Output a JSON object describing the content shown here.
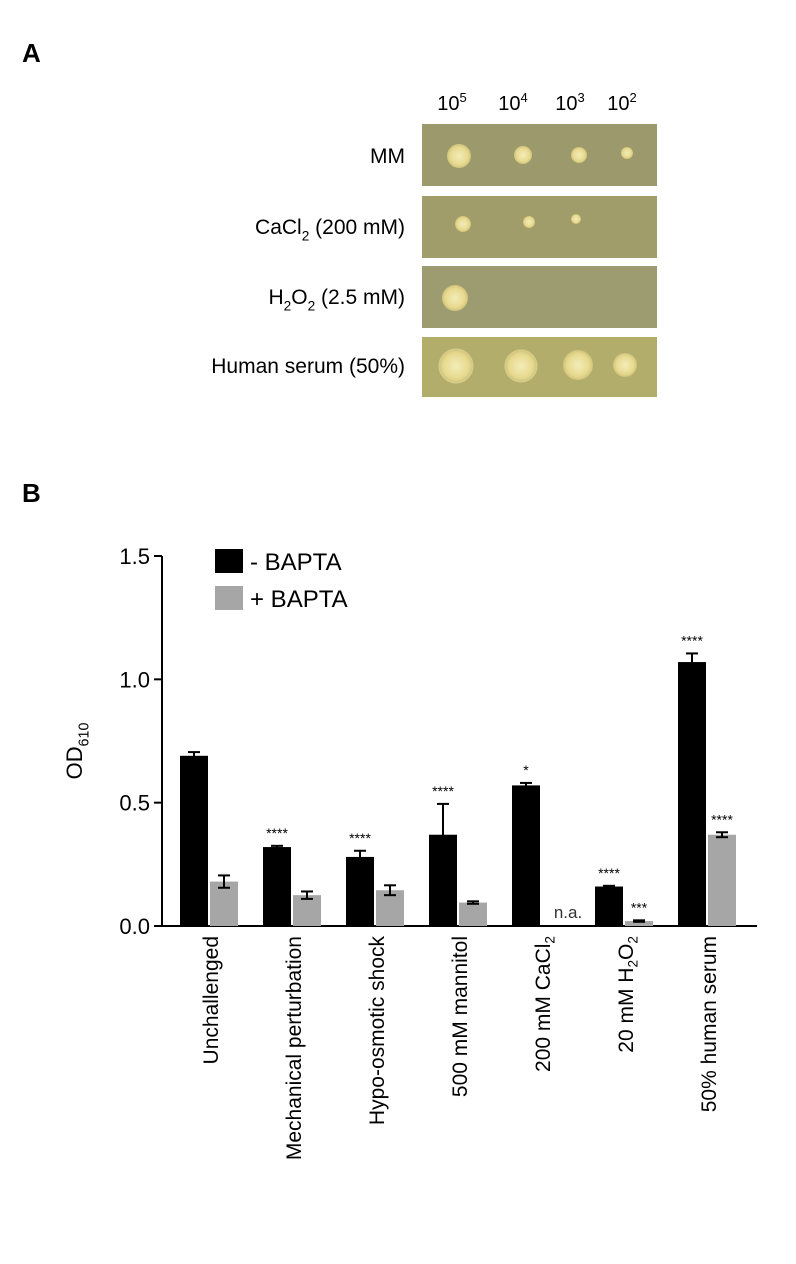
{
  "panel_a": {
    "label": "A",
    "columns": [
      [
        {
          "text": "10"
        },
        {
          "text": "5",
          "sup": true
        }
      ],
      [
        {
          "text": "10"
        },
        {
          "text": "4",
          "sup": true
        }
      ],
      [
        {
          "text": "10"
        },
        {
          "text": "3",
          "sup": true
        }
      ],
      [
        {
          "text": "10"
        },
        {
          "text": "2",
          "sup": true
        }
      ]
    ],
    "rows": [
      [
        {
          "text": "MM"
        }
      ],
      [
        {
          "text": "CaCl"
        },
        {
          "text": "2",
          "sub": true
        },
        {
          "text": " (200 mM)"
        }
      ],
      [
        {
          "text": "H"
        },
        {
          "text": "2",
          "sub": true
        },
        {
          "text": "O"
        },
        {
          "text": "2",
          "sub": true
        },
        {
          "text": " (2.5 mM)"
        }
      ],
      [
        {
          "text": "Human serum (50%)"
        }
      ]
    ]
  },
  "panel_b_label": "B",
  "chart_data": {
    "type": "bar",
    "ylabel": [
      {
        "text": "OD"
      },
      {
        "text": "610",
        "sub": true
      }
    ],
    "categories": [
      [
        {
          "text": "Unchallenged"
        }
      ],
      [
        {
          "text": "Mechanical perturbation"
        }
      ],
      [
        {
          "text": "Hypo-osmotic shock"
        }
      ],
      [
        {
          "text": "500 mM mannitol"
        }
      ],
      [
        {
          "text": "200 mM CaCl"
        },
        {
          "text": "2",
          "sub": true
        }
      ],
      [
        {
          "text": "20 mM H"
        },
        {
          "text": "2",
          "sub": true
        },
        {
          "text": "O"
        },
        {
          "text": "2",
          "sub": true
        }
      ],
      [
        {
          "text": "50% human serum"
        }
      ]
    ],
    "series": [
      {
        "name": "- BAPTA",
        "color": "#000000",
        "values": [
          0.69,
          0.32,
          0.28,
          0.37,
          0.57,
          0.16,
          1.07
        ],
        "errors": [
          0.015,
          0.005,
          0.025,
          0.125,
          0.01,
          0.003,
          0.035
        ],
        "annotations": [
          null,
          "****",
          "****",
          "****",
          "*",
          "****",
          "****"
        ]
      },
      {
        "name": "+ BAPTA",
        "color": "#a6a6a6",
        "values": [
          0.18,
          0.125,
          0.145,
          0.095,
          null,
          0.02,
          0.37
        ],
        "errors": [
          0.025,
          0.015,
          0.02,
          0.005,
          null,
          0.003,
          0.01
        ],
        "annotations": [
          null,
          null,
          null,
          null,
          "n.a.",
          "***",
          "****"
        ]
      }
    ],
    "ylim": [
      0,
      1.5
    ],
    "yticks": [
      {
        "value": 0,
        "label": "0.0"
      },
      0.5,
      {
        "value": 1,
        "label": "1.0"
      },
      1.5
    ],
    "legend": "upper left",
    "grid": false
  }
}
